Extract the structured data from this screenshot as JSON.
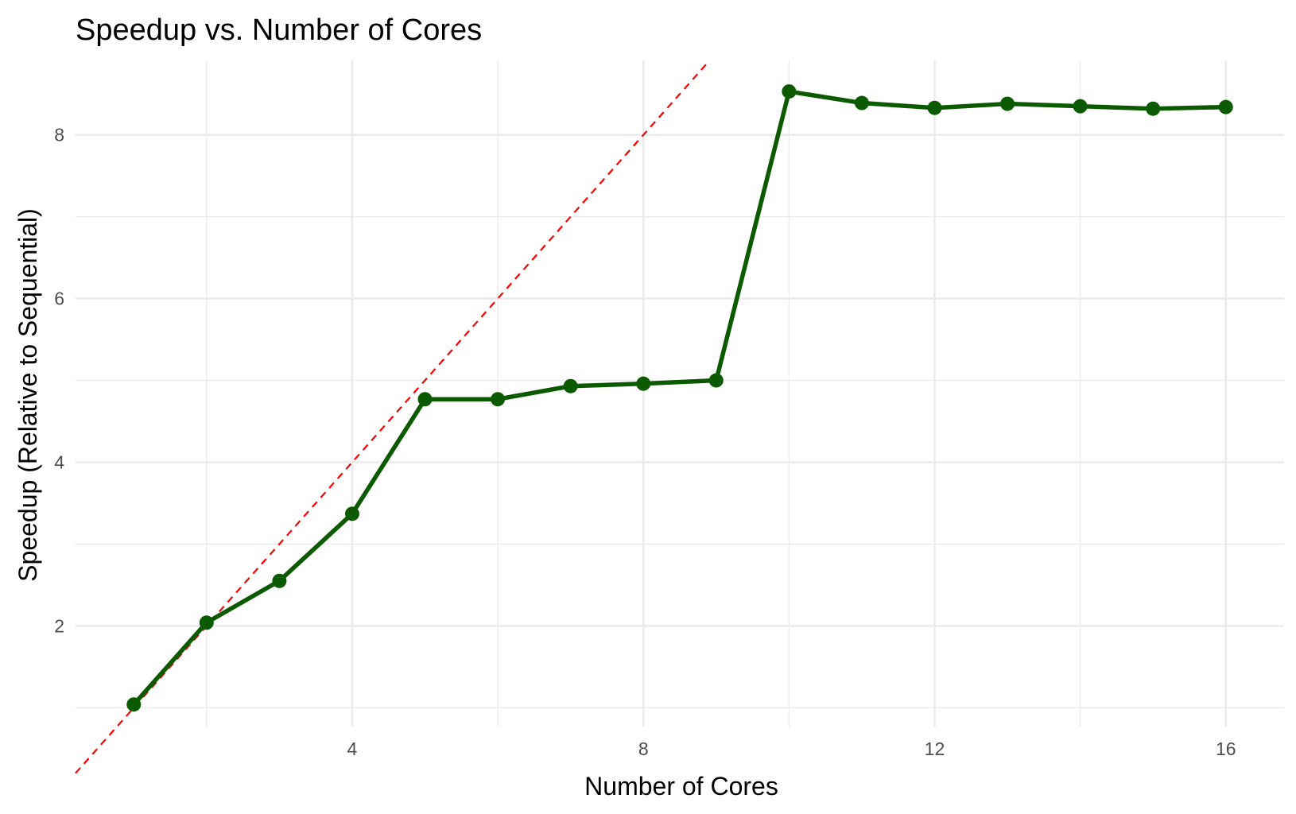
{
  "chart_data": {
    "type": "line",
    "title": "Speedup vs. Number of Cores",
    "xlabel": "Number of Cores",
    "ylabel": "Speedup (Relative to Sequential)",
    "xlim": [
      0.2,
      16.8
    ],
    "ylim": [
      0.77,
      8.91
    ],
    "x_ticks": [
      4,
      8,
      12,
      16
    ],
    "y_ticks": [
      2,
      4,
      6,
      8
    ],
    "grid": true,
    "legend": "none",
    "series": [
      {
        "color": "#0b5a00",
        "x": [
          1,
          2,
          3,
          4,
          5,
          6,
          7,
          8,
          9,
          10,
          11,
          12,
          13,
          14,
          15,
          16
        ],
        "y": [
          1.04,
          2.04,
          2.55,
          3.37,
          4.77,
          4.77,
          4.93,
          4.96,
          5.0,
          8.53,
          8.39,
          8.33,
          8.38,
          8.35,
          8.32,
          8.34
        ]
      }
    ],
    "reference_line": {
      "type": "ideal",
      "slope": 1,
      "intercept": 0,
      "color": "#ff0000",
      "dashed": true
    }
  }
}
